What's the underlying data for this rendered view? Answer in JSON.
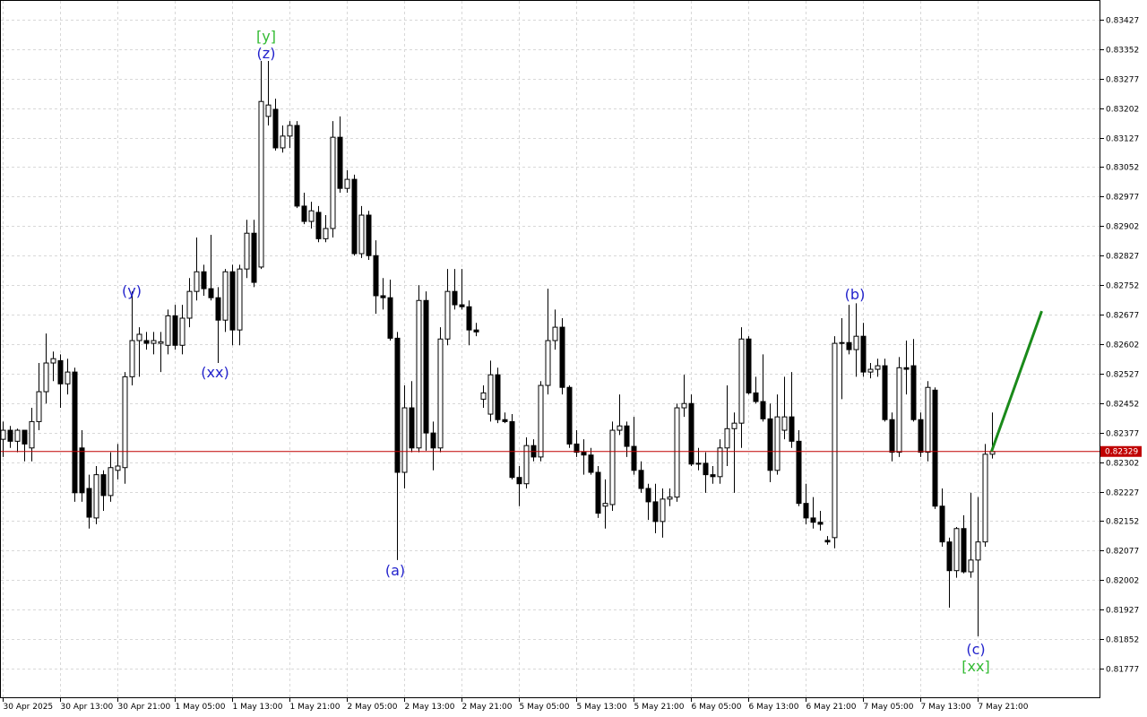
{
  "chart_data": {
    "type": "candlestick",
    "categories": [
      "30 Apr 2025",
      null,
      null,
      null,
      null,
      null,
      null,
      null,
      "30 Apr 13:00",
      null,
      null,
      null,
      null,
      null,
      null,
      null,
      "30 Apr 21:00",
      null,
      null,
      null,
      null,
      null,
      null,
      null,
      "1 May 05:00",
      null,
      null,
      null,
      null,
      null,
      null,
      null,
      "1 May 13:00",
      null,
      null,
      null,
      null,
      null,
      null,
      null,
      "1 May 21:00",
      null,
      null,
      null,
      null,
      null,
      null,
      null,
      "2 May 05:00",
      null,
      null,
      null,
      null,
      null,
      null,
      null,
      "2 May 13:00",
      null,
      null,
      null,
      null,
      null,
      null,
      null,
      "2 May 21:00",
      null,
      null,
      null,
      null,
      null,
      null,
      null,
      "5 May 05:00",
      null,
      null,
      null,
      null,
      null,
      null,
      null,
      "5 May 13:00",
      null,
      null,
      null,
      null,
      null,
      null,
      null,
      "5 May 21:00",
      null,
      null,
      null,
      null,
      null,
      null,
      null,
      "6 May 05:00",
      null,
      null,
      null,
      null,
      null,
      null,
      null,
      "6 May 13:00",
      null,
      null,
      null,
      null,
      null,
      null,
      null,
      "6 May 21:00",
      null,
      null,
      null,
      null,
      null,
      null,
      null,
      "7 May 05:00",
      null,
      null,
      null,
      null,
      null,
      null,
      null,
      "7 May 13:00",
      null,
      null,
      null,
      null,
      null,
      null,
      null,
      "7 May 21:00",
      null,
      null
    ],
    "open": [
      0.8236,
      0.82383,
      0.82355,
      0.82383,
      0.82338,
      0.82405,
      0.82481,
      0.82554,
      0.8256,
      0.82501,
      0.82531,
      0.82338,
      0.82235,
      0.8216,
      0.8227,
      0.82217,
      0.82281,
      0.82288,
      0.82519,
      0.82611,
      0.82611,
      0.82604,
      0.82604,
      0.82599,
      0.82674,
      0.82599,
      0.82668,
      0.82736,
      0.82786,
      0.82743,
      0.8272,
      0.82663,
      0.82786,
      0.82638,
      0.82793,
      0.82884,
      0.82798,
      0.83181,
      0.83199,
      0.83101,
      0.83131,
      0.83158,
      0.82953,
      0.82914,
      0.82937,
      0.8287,
      0.82896,
      0.83128,
      0.82998,
      0.83021,
      0.82832,
      0.8293,
      0.82827,
      0.82725,
      0.8272,
      0.82617,
      0.82276,
      0.8244,
      0.82338,
      0.82713,
      0.82376,
      0.82338,
      0.82615,
      0.82736,
      0.82702,
      0.82697,
      0.82638,
      0.82462,
      0.82424,
      0.82524,
      0.8241,
      0.82405,
      0.82263,
      0.82247,
      0.82344,
      0.82315,
      0.82497,
      0.82611,
      0.82645,
      0.82492,
      0.82348,
      0.82327,
      0.8232,
      0.82276,
      0.8219,
      0.82194,
      0.82383,
      0.82394,
      0.82342,
      0.82281,
      0.82235,
      0.82201,
      0.82151,
      0.82208,
      0.82213,
      0.8244,
      0.82451,
      0.82297,
      0.82299,
      0.8227,
      0.82265,
      0.82338,
      0.82387,
      0.82401,
      0.82615,
      0.82478,
      0.82456,
      0.82412,
      0.82281,
      0.82383,
      0.82417,
      0.82355,
      0.82197,
      0.8216,
      0.82149,
      0.82103,
      0.8211,
      0.82604,
      0.82606,
      0.82588,
      0.82622,
      0.82531,
      0.82538,
      0.82547,
      0.8241,
      0.82327,
      0.82542,
      0.82547,
      0.8241,
      0.82327,
      0.82485,
      0.8219,
      0.82099,
      0.82026,
      0.82133,
      0.82023,
      0.82053,
      0.82099,
      0.82322
    ],
    "high": [
      0.82405,
      0.82394,
      0.82387,
      0.82383,
      0.8244,
      0.82554,
      0.82629,
      0.82583,
      0.82576,
      0.82565,
      0.82542,
      0.82383,
      0.8227,
      0.82292,
      0.82281,
      0.82327,
      0.82348,
      0.82531,
      0.82736,
      0.82645,
      0.82633,
      0.82633,
      0.82633,
      0.8269,
      0.82702,
      0.82702,
      0.8277,
      0.82873,
      0.82804,
      0.8288,
      0.82747,
      0.82793,
      0.82804,
      0.82804,
      0.82918,
      0.82918,
      0.83322,
      0.83322,
      0.83226,
      0.83158,
      0.83169,
      0.83169,
      0.82987,
      0.82964,
      0.82953,
      0.8293,
      0.83169,
      0.83181,
      0.83044,
      0.83033,
      0.82953,
      0.82941,
      0.82866,
      0.8277,
      0.82766,
      0.82633,
      0.82497,
      0.82508,
      0.82752,
      0.82736,
      0.82405,
      0.82645,
      0.82793,
      0.82793,
      0.82793,
      0.82713,
      0.82656,
      0.82497,
      0.8256,
      0.82542,
      0.82428,
      0.82424,
      0.82292,
      0.82365,
      0.8236,
      0.82508,
      0.82743,
      0.8269,
      0.82668,
      0.82497,
      0.82383,
      0.8236,
      0.82338,
      0.82292,
      0.82258,
      0.82405,
      0.82474,
      0.82405,
      0.82417,
      0.82304,
      0.82247,
      0.82247,
      0.82235,
      0.82235,
      0.82451,
      0.82524,
      0.82474,
      0.82338,
      0.82327,
      0.82292,
      0.8236,
      0.82497,
      0.82428,
      0.82645,
      0.82622,
      0.82519,
      0.82576,
      0.82451,
      0.82474,
      0.82519,
      0.82531,
      0.82383,
      0.82247,
      0.82213,
      0.82178,
      0.82114,
      0.82622,
      0.82668,
      0.82702,
      0.82706,
      0.82656,
      0.82554,
      0.82565,
      0.82565,
      0.82428,
      0.82569,
      0.82611,
      0.82615,
      0.82428,
      0.82508,
      0.82492,
      0.82235,
      0.8211,
      0.82137,
      0.82167,
      0.82224,
      0.82213,
      0.82348,
      0.82428
    ],
    "low": [
      0.82315,
      0.82338,
      0.82327,
      0.82304,
      0.82304,
      0.82383,
      0.82451,
      0.82508,
      0.8244,
      0.82474,
      0.82201,
      0.82201,
      0.82133,
      0.82144,
      0.82178,
      0.82201,
      0.82258,
      0.82247,
      0.82497,
      0.82519,
      0.82588,
      0.82576,
      0.82531,
      0.82576,
      0.82588,
      0.82576,
      0.82645,
      0.82713,
      0.82725,
      0.82713,
      0.82554,
      0.82633,
      0.82599,
      0.82599,
      0.8277,
      0.82747,
      0.82793,
      0.83158,
      0.83094,
      0.83089,
      0.83101,
      0.82948,
      0.82907,
      0.82896,
      0.82861,
      0.82861,
      0.82873,
      0.82987,
      0.82987,
      0.82827,
      0.82821,
      0.82816,
      0.82679,
      0.8269,
      0.82611,
      0.82053,
      0.82235,
      0.82327,
      0.82327,
      0.82331,
      0.82281,
      0.82327,
      0.82599,
      0.8269,
      0.8269,
      0.82599,
      0.82622,
      0.8244,
      0.82405,
      0.82401,
      0.82401,
      0.82258,
      0.8219,
      0.82235,
      0.82304,
      0.82304,
      0.82474,
      0.82588,
      0.82474,
      0.82338,
      0.82315,
      0.8227,
      0.8227,
      0.8216,
      0.82133,
      0.82178,
      0.82371,
      0.82315,
      0.8227,
      0.82224,
      0.82155,
      0.82121,
      0.8211,
      0.8219,
      0.82201,
      0.82417,
      0.82292,
      0.82281,
      0.82224,
      0.82247,
      0.82247,
      0.82292,
      0.82224,
      0.82338,
      0.82474,
      0.82451,
      0.82405,
      0.82251,
      0.8227,
      0.8236,
      0.82338,
      0.8219,
      0.82144,
      0.82133,
      0.82128,
      0.82092,
      0.82083,
      0.82462,
      0.82576,
      0.82519,
      0.82519,
      0.82515,
      0.82519,
      0.82405,
      0.82304,
      0.82315,
      0.82474,
      0.82405,
      0.82315,
      0.82304,
      0.82183,
      0.82087,
      0.81932,
      0.82008,
      0.82019,
      0.82008,
      0.81859,
      0.82087,
      0.82311
    ],
    "close": [
      0.82383,
      0.82355,
      0.82383,
      0.82348,
      0.82405,
      0.82481,
      0.82554,
      0.82565,
      0.82501,
      0.82531,
      0.82224,
      0.82224,
      0.82162,
      0.8227,
      0.82217,
      0.82288,
      0.82292,
      0.82519,
      0.82611,
      0.82627,
      0.82604,
      0.82611,
      0.82608,
      0.82674,
      0.82599,
      0.82668,
      0.82736,
      0.82786,
      0.82743,
      0.8272,
      0.82663,
      0.82786,
      0.82638,
      0.82793,
      0.82884,
      0.82759,
      0.83219,
      0.8321,
      0.83101,
      0.83131,
      0.83158,
      0.82953,
      0.82914,
      0.82941,
      0.8287,
      0.82896,
      0.83128,
      0.82998,
      0.83021,
      0.82832,
      0.8293,
      0.82827,
      0.82725,
      0.8272,
      0.82617,
      0.82276,
      0.8244,
      0.82338,
      0.82713,
      0.82376,
      0.82338,
      0.82615,
      0.82736,
      0.82702,
      0.82697,
      0.82638,
      0.82633,
      0.82478,
      0.82524,
      0.8241,
      0.82405,
      0.82263,
      0.82247,
      0.82344,
      0.82315,
      0.82497,
      0.82611,
      0.82645,
      0.82492,
      0.82348,
      0.82327,
      0.8232,
      0.82276,
      0.82172,
      0.82197,
      0.82383,
      0.82394,
      0.82342,
      0.82281,
      0.82235,
      0.82201,
      0.82151,
      0.82208,
      0.82213,
      0.8244,
      0.82451,
      0.82297,
      0.82299,
      0.8227,
      0.82265,
      0.82338,
      0.82387,
      0.82401,
      0.82615,
      0.82478,
      0.82456,
      0.82412,
      0.82281,
      0.82417,
      0.82417,
      0.82355,
      0.82197,
      0.8216,
      0.82149,
      0.82144,
      0.82099,
      0.82604,
      0.82606,
      0.82588,
      0.82622,
      0.82531,
      0.82538,
      0.82547,
      0.8241,
      0.82327,
      0.82542,
      0.82538,
      0.8241,
      0.82327,
      0.82492,
      0.8219,
      0.82099,
      0.82026,
      0.82133,
      0.82023,
      0.82053,
      0.82099,
      0.82322,
      0.82329
    ],
    "up_color": "#ffffff",
    "down_color": "#000000",
    "wick_color": "#000000",
    "ylim": [
      0.81704,
      0.83477
    ],
    "yticks": [
      0.83427,
      0.83352,
      0.83277,
      0.83202,
      0.83127,
      0.83052,
      0.82977,
      0.82902,
      0.82827,
      0.82752,
      0.82677,
      0.82602,
      0.82527,
      0.82452,
      0.82377,
      0.82302,
      0.82227,
      0.82152,
      0.82077,
      0.82002,
      0.81927,
      0.81852,
      0.81777
    ],
    "grid": true,
    "current_price": 0.82329,
    "current_price_color": "#c00000",
    "forecast": {
      "color": "#1a8a1a",
      "x": [
        138,
        145
      ],
      "values": [
        0.82329,
        0.82686
      ]
    },
    "annotations": [
      {
        "text": "[y]",
        "color": "#33bb33"
      },
      {
        "text": "(z)",
        "color": "#2222cc"
      },
      {
        "text": "(y)",
        "color": "#2222cc"
      },
      {
        "text": "(xx)",
        "color": "#2222cc"
      },
      {
        "text": "(a)",
        "color": "#2222cc"
      },
      {
        "text": "(b)",
        "color": "#2222cc"
      },
      {
        "text": "(c)",
        "color": "#2222cc"
      },
      {
        "text": "[xx]",
        "color": "#33bb33"
      }
    ]
  }
}
